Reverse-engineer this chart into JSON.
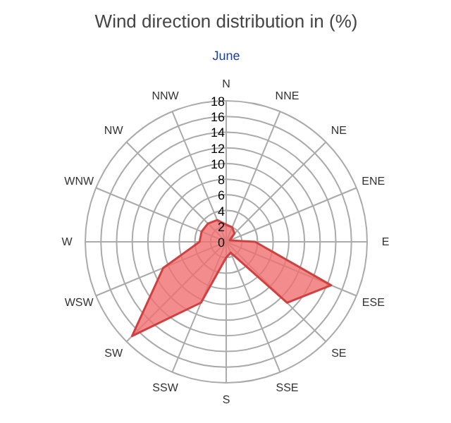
{
  "chart_data": {
    "type": "radar",
    "title": "Wind direction distribution in (%)",
    "subtitle": "June",
    "categories": [
      "N",
      "NNE",
      "NE",
      "ENE",
      "E",
      "ESE",
      "SE",
      "SSE",
      "S",
      "SSW",
      "SW",
      "WSW",
      "W",
      "WNW",
      "NW",
      "NNW"
    ],
    "series": [
      {
        "color": "#f07070",
        "values": [
          2.2,
          2,
          1.5,
          0.5,
          3.7,
          14.5,
          11,
          1.5,
          2,
          8.4,
          17,
          8.7,
          3.4,
          3.4,
          3.3,
          3
        ]
      }
    ],
    "ylim": [
      0,
      18
    ],
    "yticks": [
      0,
      2,
      4,
      6,
      8,
      10,
      12,
      14,
      16,
      18
    ],
    "grid": true
  }
}
